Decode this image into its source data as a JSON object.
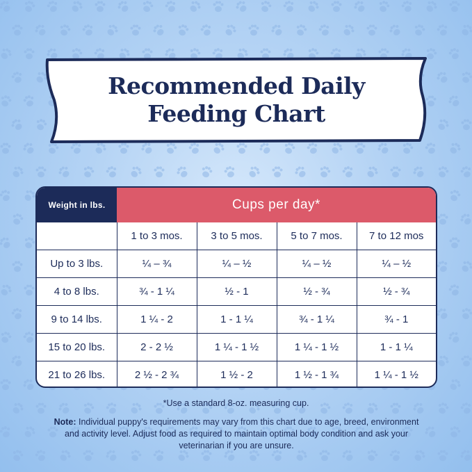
{
  "title": {
    "line1": "Recommended Daily",
    "line2": "Feeding Chart"
  },
  "table": {
    "weight_header": "Weight in lbs.",
    "cups_header": "Cups per day*",
    "age_columns": [
      "1 to 3 mos.",
      "3 to 5 mos.",
      "5 to 7 mos.",
      "7 to 12 mos"
    ],
    "rows": [
      {
        "weight": "Up to 3 lbs.",
        "values": [
          "¼ – ¾",
          "¼ – ½",
          "¼ – ½",
          "¼ – ½"
        ]
      },
      {
        "weight": "4 to 8 lbs.",
        "values": [
          "¾ - 1 ¼",
          "½ - 1",
          "½ - ¾",
          "½ - ¾"
        ]
      },
      {
        "weight": "9 to 14 lbs.",
        "values": [
          "1 ¼ - 2",
          "1 - 1 ¼",
          "¾ - 1 ¼",
          "¾ - 1"
        ]
      },
      {
        "weight": "15 to 20 lbs.",
        "values": [
          "2 - 2 ½",
          "1 ¼ - 1 ½",
          "1 ¼ - 1 ½",
          "1 - 1 ¼"
        ]
      },
      {
        "weight": "21 to 26 lbs.",
        "values": [
          "2 ½ - 2 ¾",
          "1 ½ - 2",
          "1 ½ - 1 ¾",
          "1 ¼ - 1 ½"
        ]
      }
    ]
  },
  "footnote": "*Use a standard 8-oz. measuring cup.",
  "note": {
    "label": "Note:",
    "text": " Individual puppy's requirements may vary from this chart due to age, breed, environment and activity level. Adjust food as required to maintain optimal body condition and ask  your veterinarian if you are unsure."
  },
  "colors": {
    "navy": "#1c2b59",
    "coral": "#dc5a6a",
    "background": "#b4d3f4"
  },
  "icons": [
    "paw-print-icon"
  ]
}
